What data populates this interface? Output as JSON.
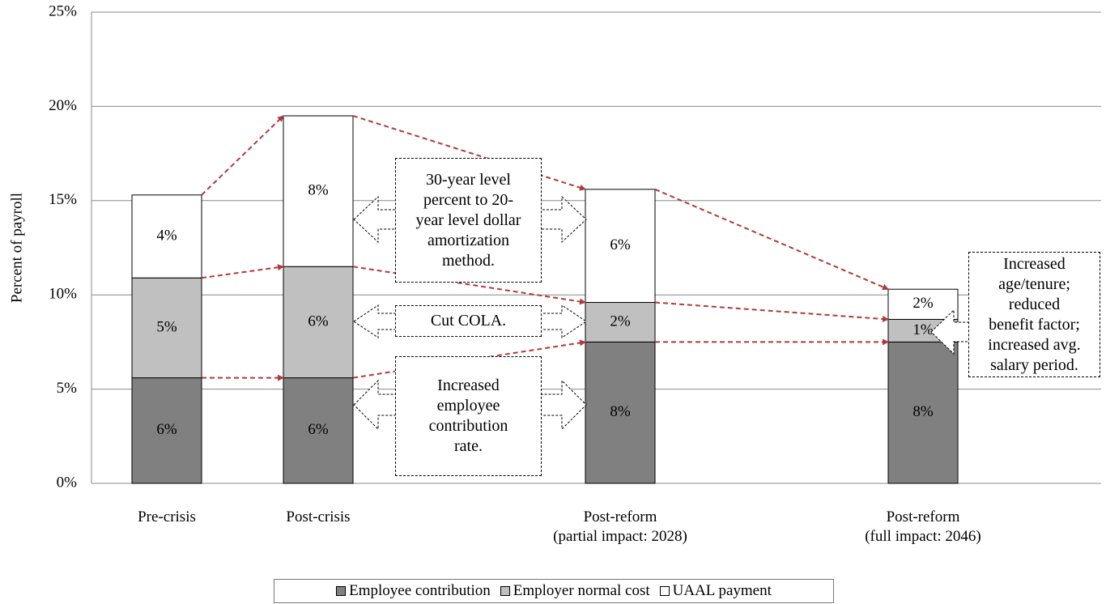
{
  "chart_data": {
    "type": "bar",
    "stacked": true,
    "y_label": "Percent of payroll",
    "categories": [
      "Pre-crisis",
      "Post-crisis",
      "Post-reform\n(partial impact: 2028)",
      "Post-reform\n(full impact: 2046)"
    ],
    "series": [
      {
        "name": "Employee contribution",
        "color": "#808080",
        "values": [
          5.6,
          5.6,
          7.5,
          7.5
        ],
        "value_labels": [
          "6%",
          "6%",
          "8%",
          "8%"
        ]
      },
      {
        "name": "Employer normal cost",
        "color": "#c0c0c0",
        "values": [
          5.3,
          5.9,
          2.1,
          1.2
        ],
        "value_labels": [
          "5%",
          "6%",
          "2%",
          "1%"
        ]
      },
      {
        "name": "UAAL payment",
        "color": "#ffffff",
        "values": [
          4.4,
          8.0,
          6.0,
          1.6
        ],
        "value_labels": [
          "4%",
          "8%",
          "6%",
          "2%"
        ]
      }
    ],
    "ylim": [
      0,
      25
    ],
    "yticks": [
      {
        "value": 0,
        "label": "0%"
      },
      {
        "value": 5,
        "label": "5%"
      },
      {
        "value": 10,
        "label": "10%"
      },
      {
        "value": 15,
        "label": "15%"
      },
      {
        "value": 20,
        "label": "20%"
      },
      {
        "value": 25,
        "label": "25%"
      }
    ],
    "grid": true,
    "legend": "bottom",
    "annotations": [
      "30-year level\npercent to 20-\nyear level dollar\namortization\nmethod.",
      "Cut COLA.",
      "Increased\nemployee\ncontribution\nrate.",
      "Increased\nage/tenure;\nreduced\nbenefit factor;\nincreased avg.\nsalary period."
    ]
  }
}
